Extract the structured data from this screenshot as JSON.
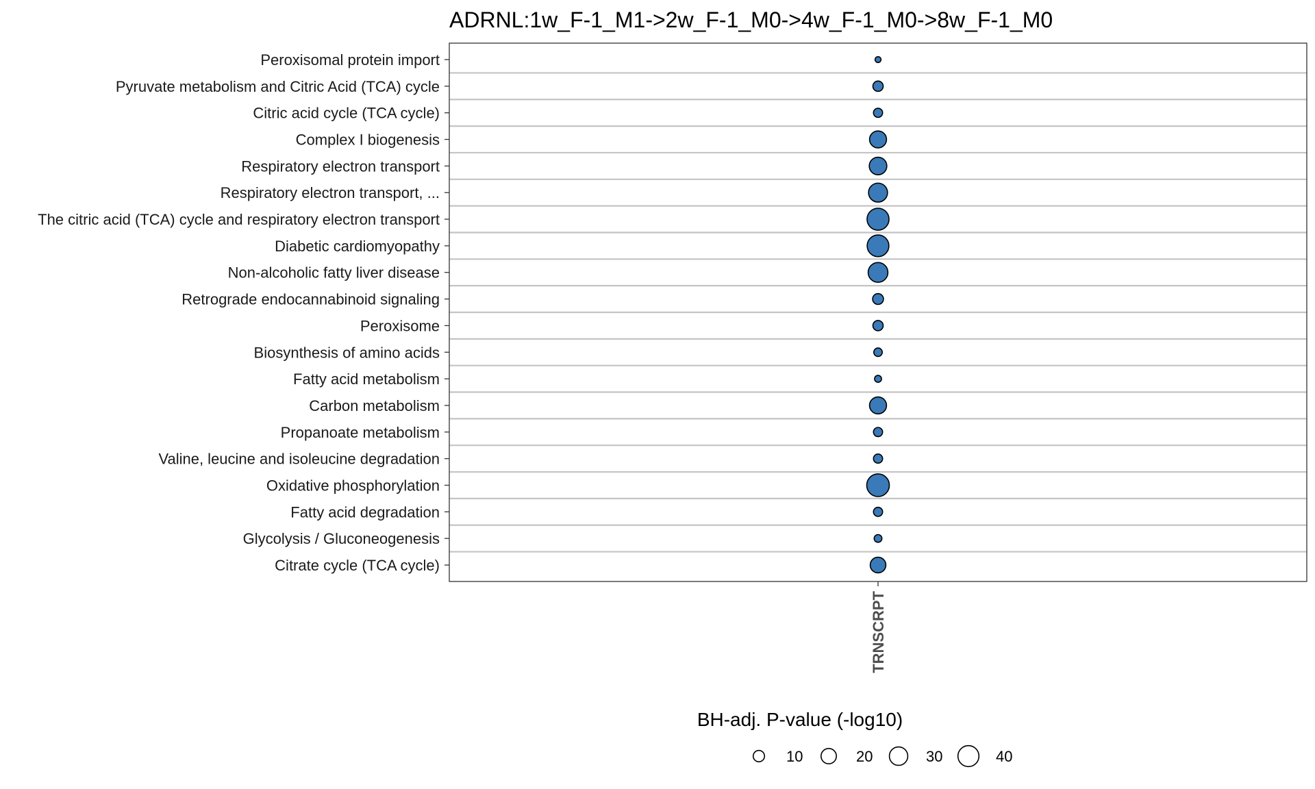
{
  "chart_data": {
    "type": "scatter",
    "title": "ADRNL:1w_F-1_M1->2w_F-1_M0->4w_F-1_M0->8w_F-1_M0",
    "x_categories": [
      "TRNSCRPT"
    ],
    "y_categories": [
      "Peroxisomal protein import",
      "Pyruvate metabolism and Citric Acid (TCA) cycle",
      "Citric acid cycle (TCA cycle)",
      "Complex I biogenesis",
      "Respiratory electron transport",
      "Respiratory electron transport, ...",
      "The citric acid (TCA) cycle and respiratory electron transport",
      "Diabetic cardiomyopathy",
      "Non-alcoholic fatty liver disease",
      "Retrograde endocannabinoid signaling",
      "Peroxisome",
      "Biosynthesis of amino acids",
      "Fatty acid metabolism",
      "Carbon metabolism",
      "Propanoate metabolism",
      "Valine, leucine and isoleucine degradation",
      "Oxidative phosphorylation",
      "Fatty acid degradation",
      "Glycolysis / Gluconeogenesis",
      "Citrate cycle (TCA cycle)"
    ],
    "points": [
      {
        "x": "TRNSCRPT",
        "y": "Peroxisomal protein import",
        "value": 2
      },
      {
        "x": "TRNSCRPT",
        "y": "Pyruvate metabolism and Citric Acid (TCA) cycle",
        "value": 8
      },
      {
        "x": "TRNSCRPT",
        "y": "Citric acid cycle (TCA cycle)",
        "value": 6
      },
      {
        "x": "TRNSCRPT",
        "y": "Complex I biogenesis",
        "value": 25
      },
      {
        "x": "TRNSCRPT",
        "y": "Respiratory electron transport",
        "value": 27
      },
      {
        "x": "TRNSCRPT",
        "y": "Respiratory electron transport, ...",
        "value": 32
      },
      {
        "x": "TRNSCRPT",
        "y": "The citric acid (TCA) cycle and respiratory electron transport",
        "value": 44
      },
      {
        "x": "TRNSCRPT",
        "y": "Diabetic cardiomyopathy",
        "value": 43
      },
      {
        "x": "TRNSCRPT",
        "y": "Non-alcoholic fatty liver disease",
        "value": 35
      },
      {
        "x": "TRNSCRPT",
        "y": "Retrograde endocannabinoid signaling",
        "value": 9
      },
      {
        "x": "TRNSCRPT",
        "y": "Peroxisome",
        "value": 8
      },
      {
        "x": "TRNSCRPT",
        "y": "Biosynthesis of amino acids",
        "value": 5
      },
      {
        "x": "TRNSCRPT",
        "y": "Fatty acid metabolism",
        "value": 3
      },
      {
        "x": "TRNSCRPT",
        "y": "Carbon metabolism",
        "value": 25
      },
      {
        "x": "TRNSCRPT",
        "y": "Propanoate metabolism",
        "value": 6
      },
      {
        "x": "TRNSCRPT",
        "y": "Valine, leucine and isoleucine degradation",
        "value": 6
      },
      {
        "x": "TRNSCRPT",
        "y": "Oxidative phosphorylation",
        "value": 47
      },
      {
        "x": "TRNSCRPT",
        "y": "Fatty acid degradation",
        "value": 6
      },
      {
        "x": "TRNSCRPT",
        "y": "Glycolysis / Gluconeogenesis",
        "value": 4
      },
      {
        "x": "TRNSCRPT",
        "y": "Citrate cycle (TCA cycle)",
        "value": 21
      }
    ],
    "size_legend": {
      "title": "BH-adj. P-value (-log10)",
      "values": [
        10,
        20,
        30,
        40
      ],
      "labels": [
        "10",
        "20",
        "30",
        "40"
      ],
      "placement": "bottom"
    },
    "point_color": "#3a7ab8",
    "point_stroke": "#000000",
    "grid": true
  }
}
